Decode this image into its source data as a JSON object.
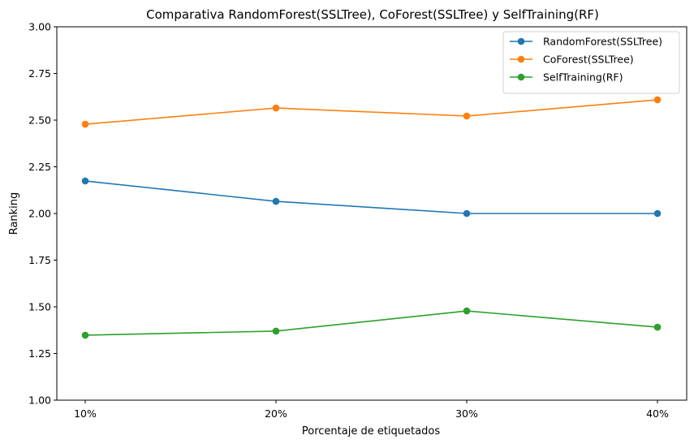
{
  "chart_data": {
    "type": "line",
    "title": "Comparativa RandomForest(SSLTree), CoForest(SSLTree) y SelfTraining(RF)",
    "xlabel": "Porcentaje de etiquetados",
    "ylabel": "Ranking",
    "categories": [
      "10%",
      "20%",
      "30%",
      "40%"
    ],
    "ylim": [
      1.0,
      3.0
    ],
    "yticks": [
      "1.00",
      "1.25",
      "1.50",
      "1.75",
      "2.00",
      "2.25",
      "2.50",
      "2.75",
      "3.00"
    ],
    "grid": false,
    "legend_position": "top-right",
    "series": [
      {
        "name": "RandomForest(SSLTree)",
        "color": "#1f77b4",
        "values": [
          2.174,
          2.065,
          2.0,
          2.0
        ]
      },
      {
        "name": "CoForest(SSLTree)",
        "color": "#ff7f0e",
        "values": [
          2.478,
          2.565,
          2.522,
          2.609
        ]
      },
      {
        "name": "SelfTraining(RF)",
        "color": "#2ca02c",
        "values": [
          1.348,
          1.37,
          1.478,
          1.391
        ]
      }
    ]
  }
}
